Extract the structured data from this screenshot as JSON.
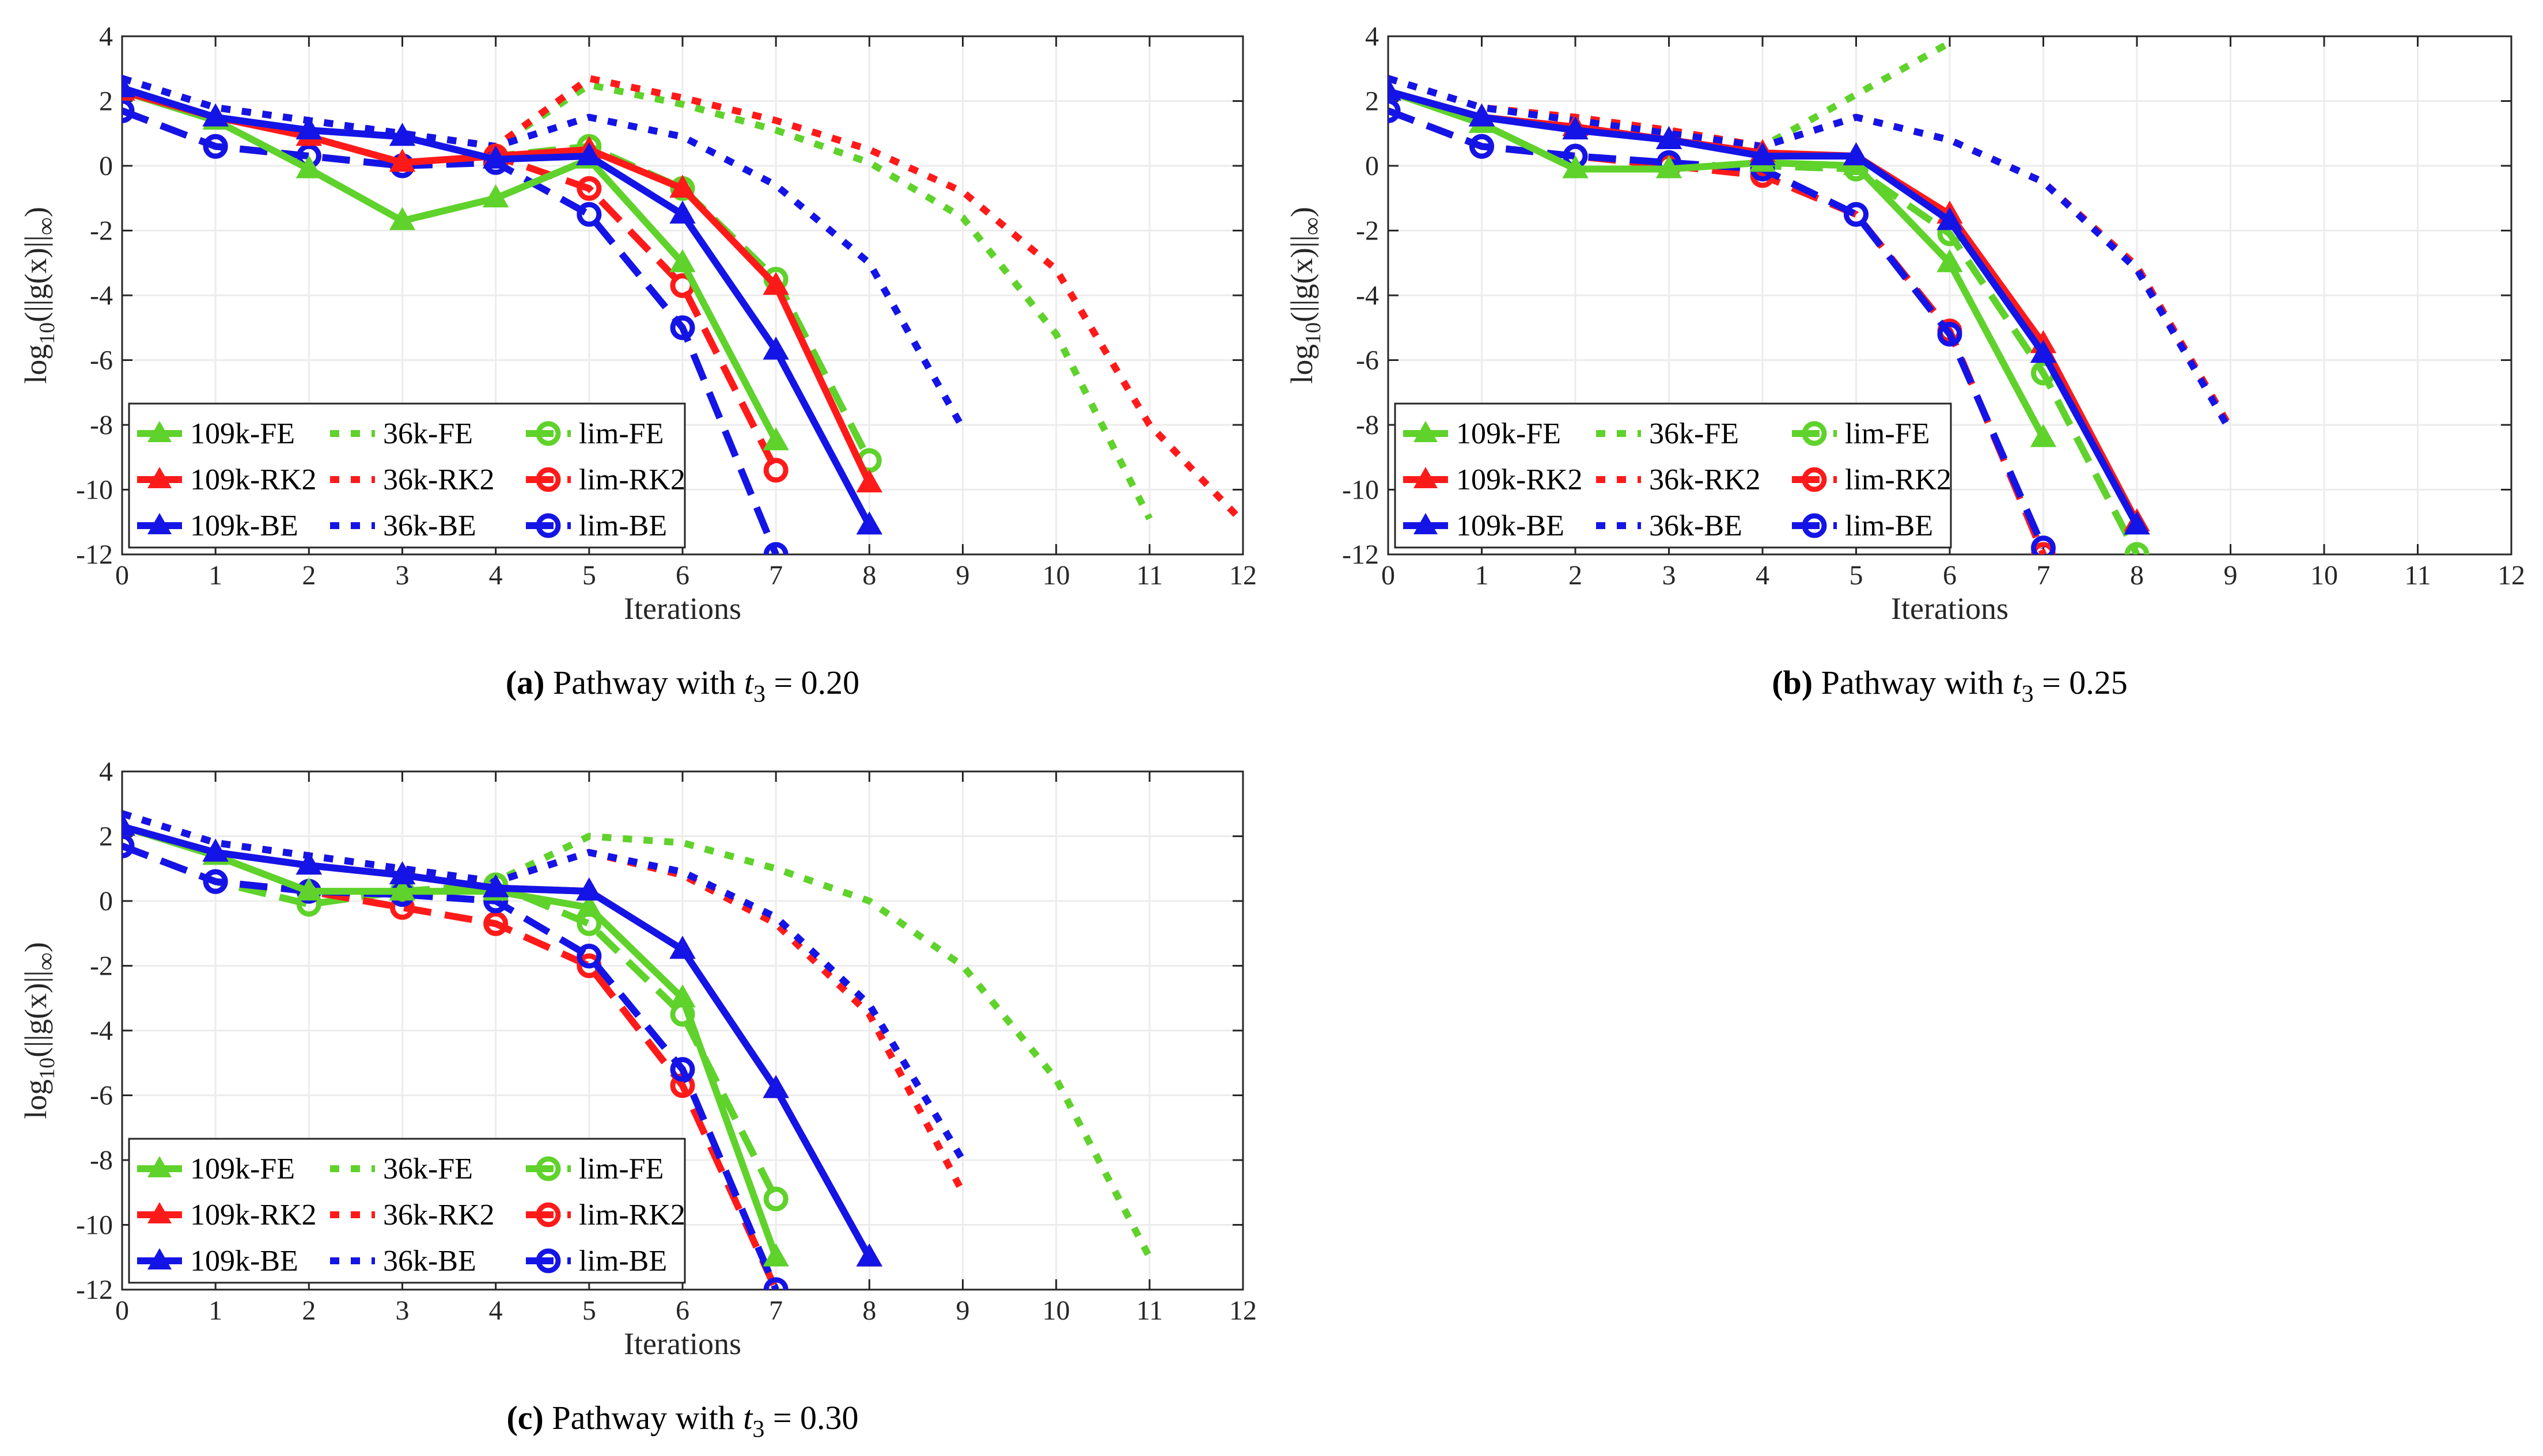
{
  "colors": {
    "FE": "#5fd22b",
    "RK2": "#ff1a1a",
    "BE": "#1414e6"
  },
  "legend_labels": [
    "109k-FE",
    "36k-FE",
    "lim-FE",
    "109k-RK2",
    "36k-RK2",
    "lim-RK2",
    "109k-BE",
    "36k-BE",
    "lim-BE"
  ],
  "chart_data": [
    {
      "id": "a",
      "type": "line",
      "caption_label": "(a)",
      "caption_text": "Pathway with",
      "caption_var": "t",
      "caption_sub": "3",
      "caption_value": "= 0.20",
      "xlabel": "Iterations",
      "ylabel_main": "log",
      "ylabel_sub": "10",
      "ylabel_rest": "(||g(x)||",
      "ylabel_sub2": "∞",
      "ylabel_close": ")",
      "xlim": [
        0,
        12
      ],
      "ylim": [
        -12,
        4
      ],
      "xticks": [
        "0",
        "1",
        "2",
        "3",
        "4",
        "5",
        "6",
        "7",
        "8",
        "9",
        "10",
        "11",
        "12"
      ],
      "yticks": [
        "4",
        "2",
        "0",
        "-2",
        "-4",
        "-6",
        "-8",
        "-10",
        "-12"
      ],
      "series": [
        {
          "name": "36k-FE",
          "color": "FE",
          "style": "dot",
          "x": [
            0,
            1,
            2,
            3,
            4,
            5,
            6,
            7,
            8,
            9,
            10,
            11
          ],
          "y": [
            2.7,
            1.8,
            1.4,
            1.0,
            0.6,
            2.5,
            1.9,
            1.1,
            0.1,
            -1.6,
            -5.2,
            -10.9
          ]
        },
        {
          "name": "36k-RK2",
          "color": "RK2",
          "style": "dot",
          "x": [
            0,
            1,
            2,
            3,
            4,
            5,
            6,
            7,
            8,
            9,
            10,
            11,
            12
          ],
          "y": [
            2.7,
            1.8,
            1.4,
            1.0,
            0.6,
            2.7,
            2.1,
            1.4,
            0.5,
            -0.8,
            -3.2,
            -8.0,
            -11.0
          ]
        },
        {
          "name": "36k-BE",
          "color": "BE",
          "style": "dot",
          "x": [
            0,
            1,
            2,
            3,
            4,
            5,
            6,
            7,
            8,
            9
          ],
          "y": [
            2.7,
            1.8,
            1.4,
            1.0,
            0.6,
            1.5,
            0.9,
            -0.6,
            -3.0,
            -8.1
          ]
        },
        {
          "name": "lim-FE",
          "color": "FE",
          "style": "dash",
          "marker": "circle",
          "x": [
            0,
            1,
            2,
            3,
            4,
            5,
            6,
            7,
            8
          ],
          "y": [
            1.7,
            0.6,
            0.3,
            0.0,
            0.3,
            0.6,
            -0.7,
            -3.5,
            -9.1
          ]
        },
        {
          "name": "lim-RK2",
          "color": "RK2",
          "style": "dash",
          "marker": "circle",
          "x": [
            0,
            1,
            2,
            3,
            4,
            5,
            6,
            7
          ],
          "y": [
            1.7,
            0.6,
            0.3,
            0.0,
            0.3,
            -0.7,
            -3.7,
            -9.4
          ]
        },
        {
          "name": "lim-BE",
          "color": "BE",
          "style": "dash",
          "marker": "circle",
          "x": [
            0,
            1,
            2,
            3,
            4,
            5,
            6,
            7
          ],
          "y": [
            1.7,
            0.6,
            0.3,
            0.0,
            0.1,
            -1.5,
            -5.0,
            -12.0
          ]
        },
        {
          "name": "109k-FE",
          "color": "FE",
          "style": "solid",
          "marker": "triangle",
          "x": [
            0,
            1,
            2,
            3,
            4,
            5,
            6,
            7
          ],
          "y": [
            2.3,
            1.4,
            -0.1,
            -1.7,
            -1.0,
            0.2,
            -3.0,
            -8.5
          ]
        },
        {
          "name": "109k-RK2",
          "color": "RK2",
          "style": "solid",
          "marker": "triangle",
          "x": [
            0,
            1,
            2,
            3,
            4,
            5,
            6,
            7,
            8
          ],
          "y": [
            2.3,
            1.5,
            0.9,
            0.1,
            0.3,
            0.5,
            -0.7,
            -3.7,
            -9.8
          ]
        },
        {
          "name": "109k-BE",
          "color": "BE",
          "style": "solid",
          "marker": "triangle",
          "x": [
            0,
            1,
            2,
            3,
            4,
            5,
            6,
            7,
            8
          ],
          "y": [
            2.4,
            1.5,
            1.1,
            0.9,
            0.2,
            0.3,
            -1.5,
            -5.7,
            -11.1
          ]
        }
      ]
    },
    {
      "id": "b",
      "type": "line",
      "caption_label": "(b)",
      "caption_text": "Pathway with",
      "caption_var": "t",
      "caption_sub": "3",
      "caption_value": "= 0.25",
      "xlabel": "Iterations",
      "ylabel_main": "log",
      "ylabel_sub": "10",
      "ylabel_rest": "(||g(x)||",
      "ylabel_sub2": "∞",
      "ylabel_close": ")",
      "xlim": [
        0,
        12
      ],
      "ylim": [
        -12,
        4
      ],
      "xticks": [
        "0",
        "1",
        "2",
        "3",
        "4",
        "5",
        "6",
        "7",
        "8",
        "9",
        "10",
        "11",
        "12"
      ],
      "yticks": [
        "4",
        "2",
        "0",
        "-2",
        "-4",
        "-6",
        "-8",
        "-10",
        "-12"
      ],
      "series": [
        {
          "name": "36k-FE",
          "color": "FE",
          "style": "dot",
          "x": [
            0,
            1,
            2,
            3,
            4,
            5,
            6
          ],
          "y": [
            2.7,
            1.8,
            1.4,
            1.0,
            0.6,
            2.2,
            3.8
          ]
        },
        {
          "name": "36k-RK2",
          "color": "RK2",
          "style": "dot",
          "x": [
            0,
            1,
            2,
            3,
            4,
            5,
            6,
            7,
            8,
            9
          ],
          "y": [
            2.7,
            1.8,
            1.5,
            1.1,
            0.6,
            1.5,
            0.8,
            -0.5,
            -3.1,
            -8.1
          ]
        },
        {
          "name": "36k-BE",
          "color": "BE",
          "style": "dot",
          "x": [
            0,
            1,
            2,
            3,
            4,
            5,
            6,
            7,
            8,
            9
          ],
          "y": [
            2.7,
            1.8,
            1.4,
            1.0,
            0.6,
            1.5,
            0.8,
            -0.5,
            -3.2,
            -8.2
          ]
        },
        {
          "name": "lim-FE",
          "color": "FE",
          "style": "dash",
          "marker": "circle",
          "x": [
            0,
            1,
            2,
            3,
            4,
            5,
            6,
            7,
            8
          ],
          "y": [
            1.7,
            0.6,
            0.3,
            0.0,
            0.0,
            -0.1,
            -2.1,
            -6.4,
            -12.0
          ]
        },
        {
          "name": "lim-RK2",
          "color": "RK2",
          "style": "dash",
          "marker": "circle",
          "x": [
            0,
            1,
            2,
            3,
            4,
            5,
            6,
            7
          ],
          "y": [
            1.7,
            0.6,
            0.3,
            0.0,
            -0.3,
            -1.5,
            -5.1,
            -12.0
          ]
        },
        {
          "name": "lim-BE",
          "color": "BE",
          "style": "dash",
          "marker": "circle",
          "x": [
            0,
            1,
            2,
            3,
            4,
            5,
            6,
            7
          ],
          "y": [
            1.7,
            0.6,
            0.3,
            0.1,
            -0.1,
            -1.5,
            -5.2,
            -11.8
          ]
        },
        {
          "name": "109k-FE",
          "color": "FE",
          "style": "solid",
          "marker": "triangle",
          "x": [
            0,
            1,
            2,
            3,
            4,
            5,
            6,
            7
          ],
          "y": [
            2.3,
            1.3,
            -0.1,
            -0.1,
            0.1,
            0.0,
            -3.0,
            -8.4
          ]
        },
        {
          "name": "109k-RK2",
          "color": "RK2",
          "style": "solid",
          "marker": "triangle",
          "x": [
            0,
            1,
            2,
            3,
            4,
            5,
            6,
            7,
            8
          ],
          "y": [
            2.3,
            1.5,
            1.2,
            0.8,
            0.4,
            0.3,
            -1.5,
            -5.5,
            -11.0
          ]
        },
        {
          "name": "109k-BE",
          "color": "BE",
          "style": "solid",
          "marker": "triangle",
          "x": [
            0,
            1,
            2,
            3,
            4,
            5,
            6,
            7,
            8
          ],
          "y": [
            2.3,
            1.5,
            1.1,
            0.8,
            0.3,
            0.3,
            -1.7,
            -5.8,
            -11.1
          ]
        }
      ]
    },
    {
      "id": "c",
      "type": "line",
      "caption_label": "(c)",
      "caption_text": "Pathway with",
      "caption_var": "t",
      "caption_sub": "3",
      "caption_value": "= 0.30",
      "xlabel": "Iterations",
      "ylabel_main": "log",
      "ylabel_sub": "10",
      "ylabel_rest": "(||g(x)||",
      "ylabel_sub2": "∞",
      "ylabel_close": ")",
      "xlim": [
        0,
        12
      ],
      "ylim": [
        -12,
        4
      ],
      "xticks": [
        "0",
        "1",
        "2",
        "3",
        "4",
        "5",
        "6",
        "7",
        "8",
        "9",
        "10",
        "11",
        "12"
      ],
      "yticks": [
        "4",
        "2",
        "0",
        "-2",
        "-4",
        "-6",
        "-8",
        "-10",
        "-12"
      ],
      "series": [
        {
          "name": "36k-FE",
          "color": "FE",
          "style": "dot",
          "x": [
            0,
            1,
            2,
            3,
            4,
            5,
            6,
            7,
            8,
            9,
            10,
            11
          ],
          "y": [
            2.7,
            1.8,
            1.4,
            1.0,
            0.6,
            2.0,
            1.8,
            1.0,
            0.0,
            -2.0,
            -5.5,
            -11.0
          ]
        },
        {
          "name": "36k-RK2",
          "color": "RK2",
          "style": "dot",
          "x": [
            0,
            1,
            2,
            3,
            4,
            5,
            6,
            7,
            8,
            9
          ],
          "y": [
            2.7,
            1.8,
            1.4,
            1.0,
            0.6,
            1.5,
            0.8,
            -0.7,
            -3.5,
            -9.0
          ]
        },
        {
          "name": "36k-BE",
          "color": "BE",
          "style": "dot",
          "x": [
            0,
            1,
            2,
            3,
            4,
            5,
            6,
            7,
            8,
            9
          ],
          "y": [
            2.7,
            1.8,
            1.4,
            1.0,
            0.6,
            1.5,
            0.9,
            -0.5,
            -3.2,
            -8.0
          ]
        },
        {
          "name": "lim-FE",
          "color": "FE",
          "style": "dash",
          "marker": "circle",
          "x": [
            0,
            1,
            2,
            3,
            4,
            5,
            6,
            7
          ],
          "y": [
            1.7,
            0.6,
            -0.1,
            0.3,
            0.5,
            -0.7,
            -3.5,
            -9.2
          ]
        },
        {
          "name": "lim-RK2",
          "color": "RK2",
          "style": "dash",
          "marker": "circle",
          "x": [
            0,
            1,
            2,
            3,
            4,
            5,
            6,
            7
          ],
          "y": [
            1.7,
            0.6,
            0.3,
            -0.2,
            -0.7,
            -2.0,
            -5.7,
            -12.0
          ]
        },
        {
          "name": "lim-BE",
          "color": "BE",
          "style": "dash",
          "marker": "circle",
          "x": [
            0,
            1,
            2,
            3,
            4,
            5,
            6,
            7
          ],
          "y": [
            1.7,
            0.6,
            0.3,
            0.2,
            0.0,
            -1.7,
            -5.2,
            -12.0
          ]
        },
        {
          "name": "109k-FE",
          "color": "FE",
          "style": "solid",
          "marker": "triangle",
          "x": [
            0,
            1,
            2,
            3,
            4,
            5,
            6,
            7
          ],
          "y": [
            2.3,
            1.4,
            0.3,
            0.3,
            0.3,
            -0.2,
            -3.0,
            -11.0
          ]
        },
        {
          "name": "109k-RK2",
          "color": "RK2",
          "style": "solid",
          "marker": "triangle",
          "x": [
            0,
            1,
            2,
            3,
            4,
            5,
            6,
            7,
            8
          ],
          "y": [
            2.3,
            1.5,
            1.1,
            0.8,
            0.4,
            0.3,
            -1.5,
            -5.8,
            -11.0
          ]
        },
        {
          "name": "109k-BE",
          "color": "BE",
          "style": "solid",
          "marker": "triangle",
          "x": [
            0,
            1,
            2,
            3,
            4,
            5,
            6,
            7,
            8
          ],
          "y": [
            2.3,
            1.5,
            1.1,
            0.8,
            0.4,
            0.3,
            -1.5,
            -5.8,
            -11.0
          ]
        }
      ]
    }
  ]
}
